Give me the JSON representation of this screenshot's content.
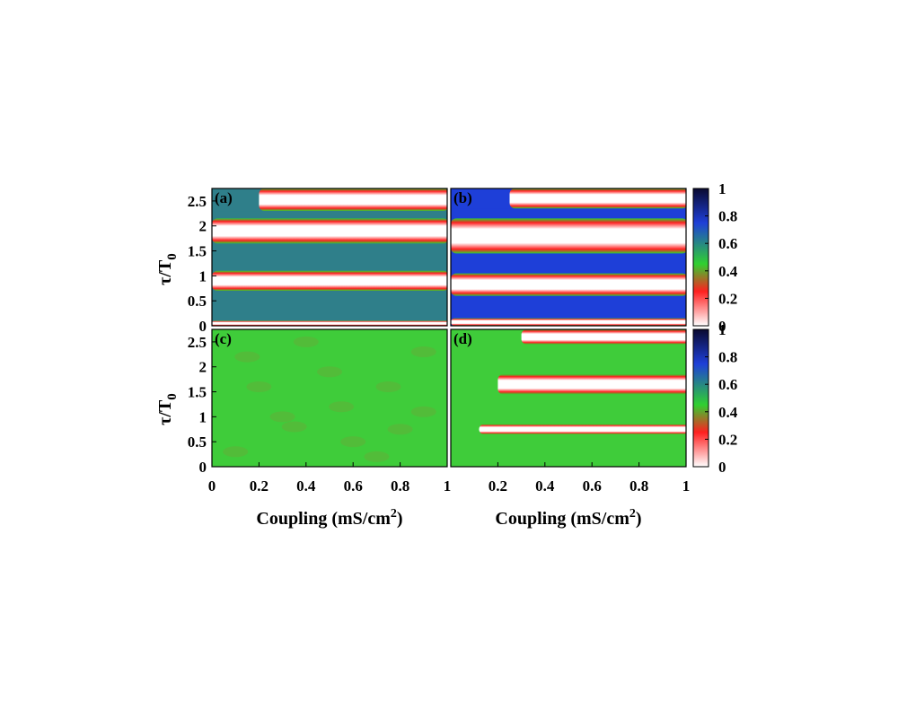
{
  "chart_data": [
    {
      "type": "heatmap",
      "panel_label": "(a)",
      "xlim": [
        0,
        1
      ],
      "ylim": [
        0,
        2.75
      ],
      "ylabel_main": "τ/T",
      "ylabel_sub": "0",
      "yticks": [
        "0",
        "0.5",
        "1",
        "1.5",
        "2",
        "2.5"
      ],
      "background": "#2f7f8a",
      "bands": [
        {
          "y_start": 0.0,
          "y_end": 0.1,
          "x_from": 0.0,
          "x_to": 1.0
        },
        {
          "y_start": 0.7,
          "y_end": 1.1,
          "x_from": 0.0,
          "x_to": 1.0
        },
        {
          "y_start": 1.65,
          "y_end": 2.15,
          "x_from": 0.0,
          "x_to": 1.0
        },
        {
          "y_start": 2.3,
          "y_end": 2.75,
          "x_from": 0.2,
          "x_to": 1.0
        }
      ],
      "background_zones": [
        {
          "y_start": 0.1,
          "y_end": 0.7
        },
        {
          "y_start": 1.1,
          "y_end": 1.65
        },
        {
          "y_start": 2.15,
          "y_end": 2.3
        }
      ]
    },
    {
      "type": "heatmap",
      "panel_label": "(b)",
      "xlim": [
        0,
        1
      ],
      "ylim": [
        0,
        2.75
      ],
      "background": "#1e3fd8",
      "bands": [
        {
          "y_start": 0.0,
          "y_end": 0.15,
          "x_from": 0.0,
          "x_to": 1.0
        },
        {
          "y_start": 0.6,
          "y_end": 1.05,
          "x_from": 0.0,
          "x_to": 1.0
        },
        {
          "y_start": 1.45,
          "y_end": 2.15,
          "x_from": 0.0,
          "x_to": 1.0
        },
        {
          "y_start": 2.35,
          "y_end": 2.75,
          "x_from": 0.25,
          "x_to": 1.0
        }
      ],
      "background_zones": [
        {
          "y_start": 0.15,
          "y_end": 0.6
        },
        {
          "y_start": 1.05,
          "y_end": 1.45
        },
        {
          "y_start": 2.15,
          "y_end": 2.35
        }
      ]
    },
    {
      "type": "heatmap",
      "panel_label": "(c)",
      "xlim": [
        0,
        1
      ],
      "ylim": [
        0,
        2.75
      ],
      "xlabel": "Coupling (mS/cm",
      "xlabel_sup": "2",
      "xlabel_end": ")",
      "xticks": [
        "0",
        "0.2",
        "0.4",
        "0.6",
        "0.8",
        "1"
      ],
      "ylabel_main": "τ/T",
      "ylabel_sub": "0",
      "yticks": [
        "0",
        "0.5",
        "1",
        "1.5",
        "2",
        "2.5"
      ],
      "background": "#3fcc3a",
      "bands": []
    },
    {
      "type": "heatmap",
      "panel_label": "(d)",
      "xlim": [
        0,
        1
      ],
      "ylim": [
        0,
        2.75
      ],
      "xlabel": "Coupling (mS/cm",
      "xlabel_sup": "2",
      "xlabel_end": ")",
      "xticks": [
        "0.2",
        "0.4",
        "0.6",
        "0.8",
        "1"
      ],
      "background": "#3fcc3a",
      "bands": [
        {
          "y_start": 0.65,
          "y_end": 0.85,
          "x_from": 0.12,
          "x_to": 1.0
        },
        {
          "y_start": 1.45,
          "y_end": 1.85,
          "x_from": 0.2,
          "x_to": 1.0
        },
        {
          "y_start": 2.45,
          "y_end": 2.75,
          "x_from": 0.3,
          "x_to": 1.0
        }
      ]
    }
  ],
  "colorbar": {
    "ticks": [
      "0",
      "0.2",
      "0.4",
      "0.6",
      "0.8",
      "1"
    ],
    "range": [
      0,
      1
    ],
    "stops": [
      "#ffffff",
      "#ff2020",
      "#30d030",
      "#1e3fd8",
      "#0a0a30"
    ]
  },
  "colors": {
    "band_center": "#ffffff",
    "band_edge": "#ff2020",
    "band_rim": "#30d030"
  }
}
